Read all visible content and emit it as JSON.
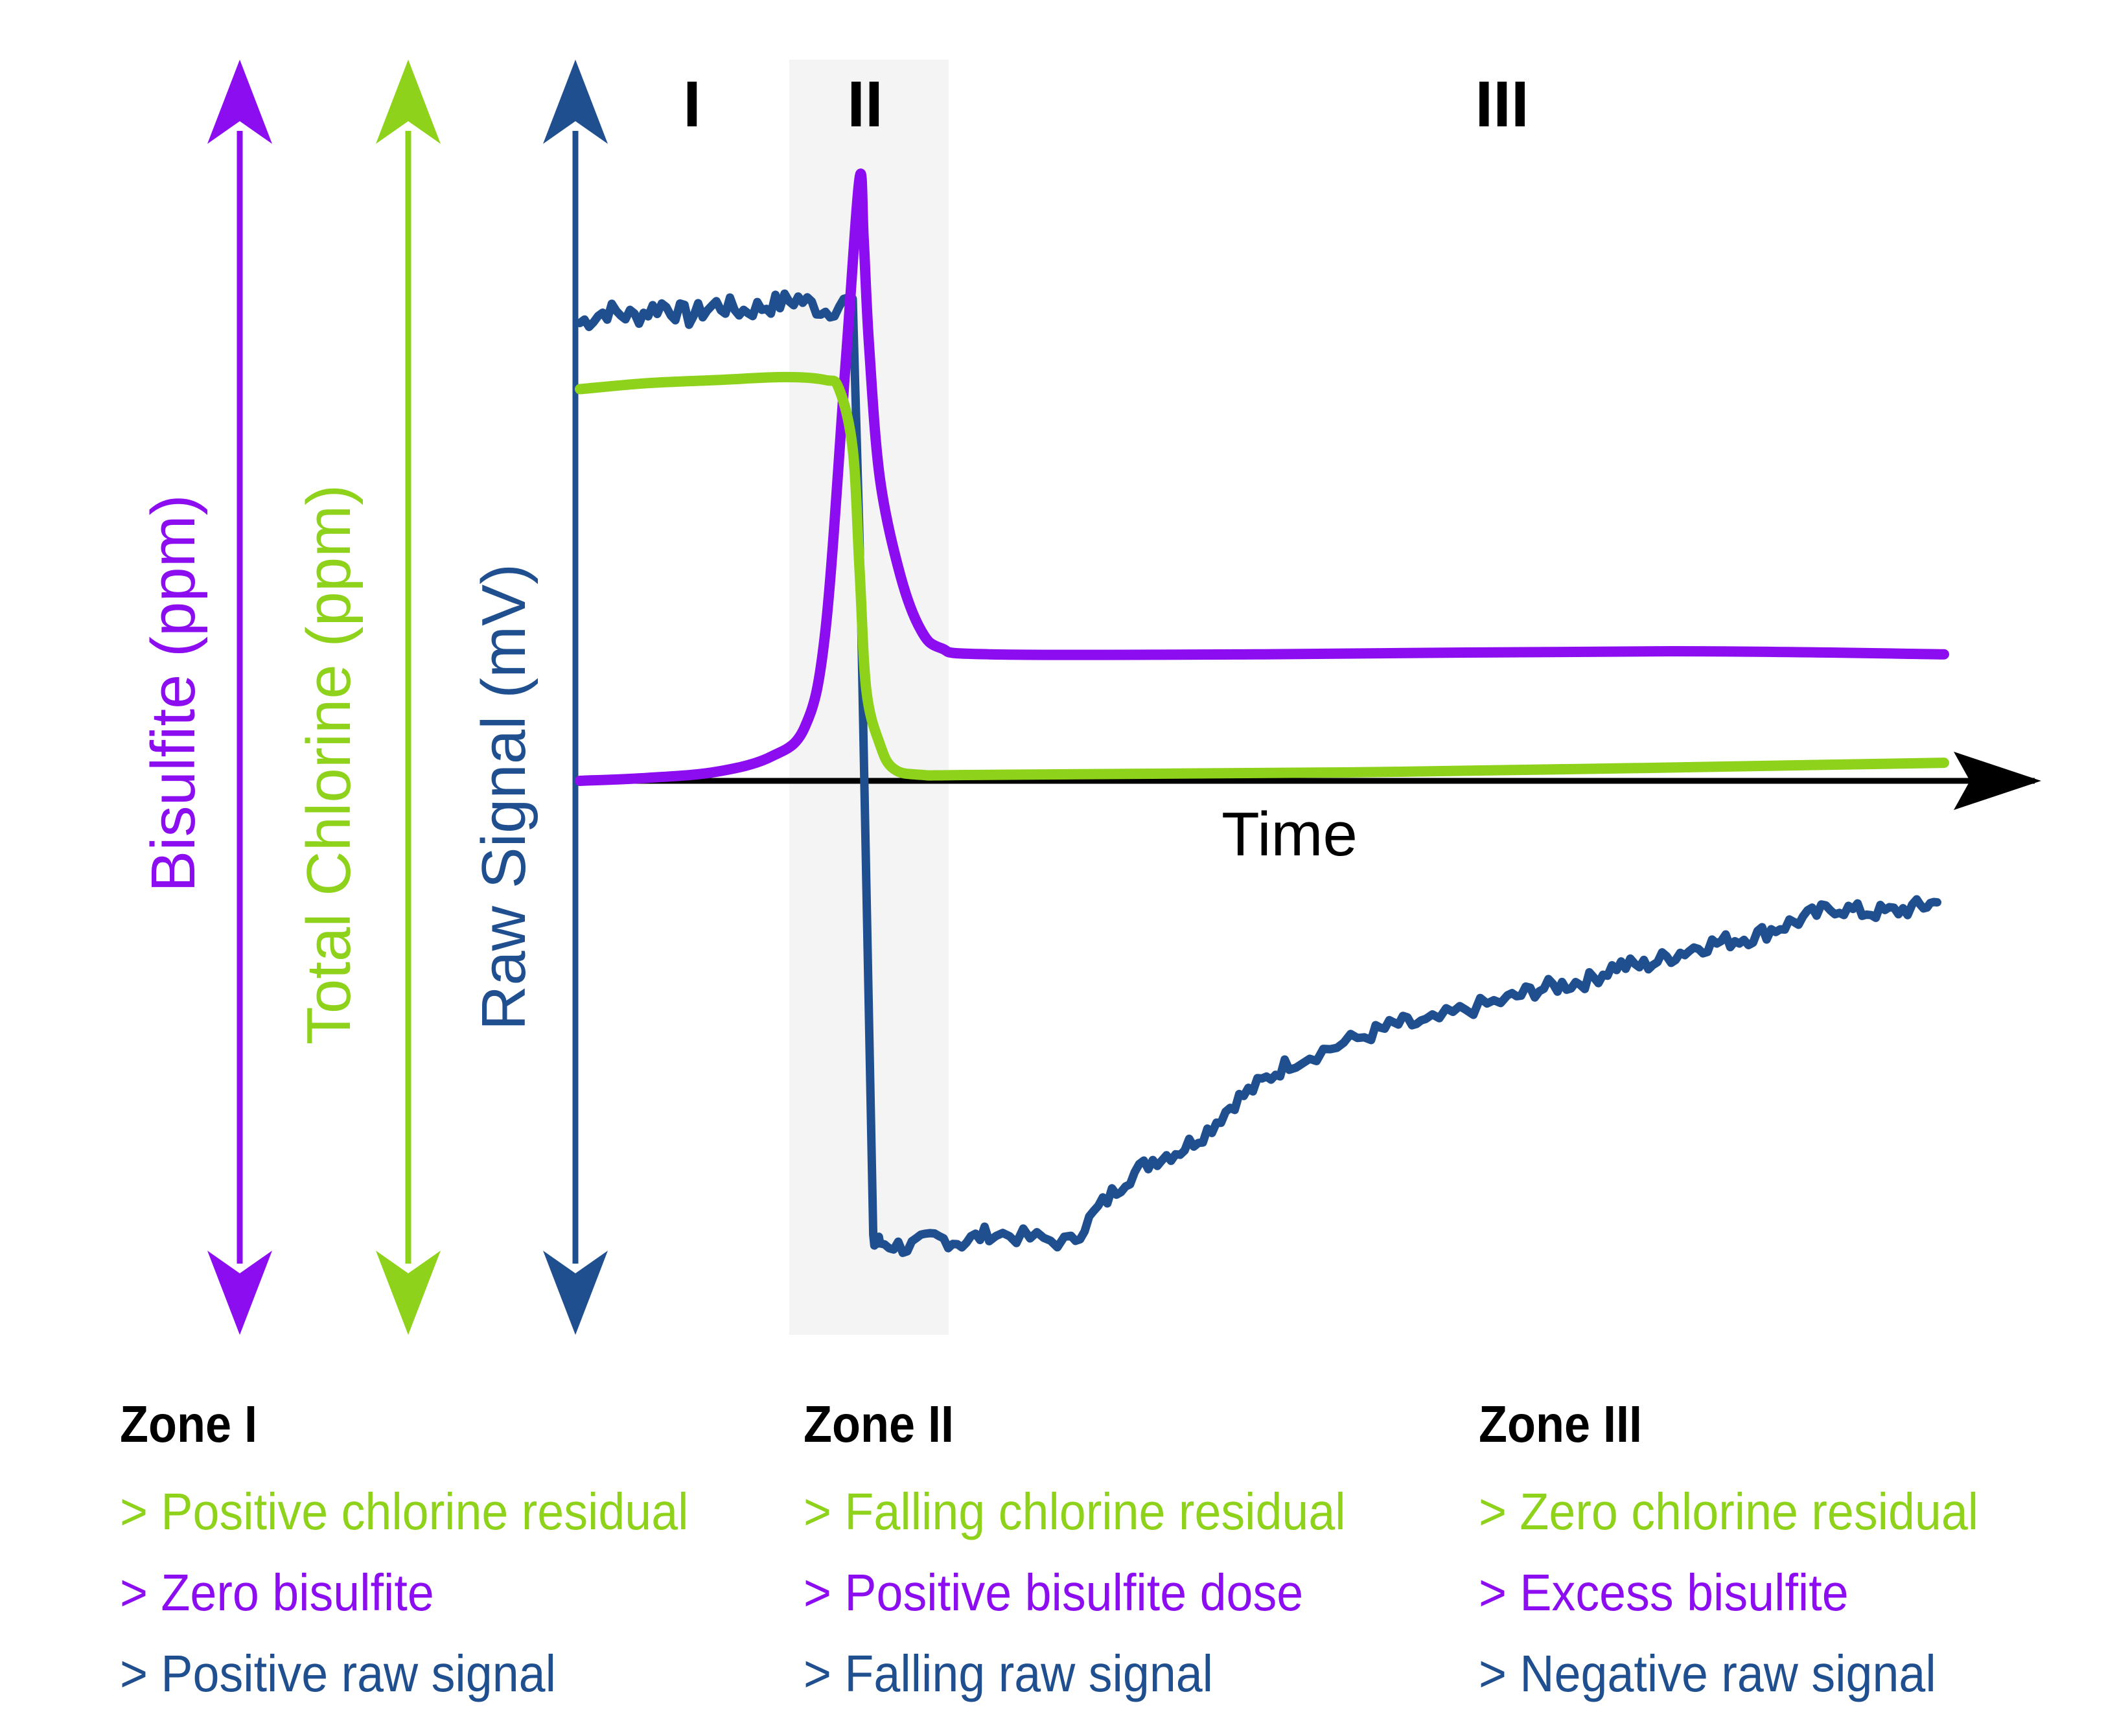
{
  "colors": {
    "bisulfite": "#8c0df0",
    "chlorine": "#8fd21b",
    "raw_signal": "#1f4f8f",
    "axis": "#000000",
    "zone_shade": "#f4f4f4"
  },
  "chart_data": {
    "type": "line",
    "title": "",
    "xlabel": "Time",
    "y_axes": [
      {
        "label": "Bisulfite (ppm)",
        "color": "#8c0df0"
      },
      {
        "label": "Total Chlorine (ppm)",
        "color": "#8fd21b"
      },
      {
        "label": "Raw Signal (mV)",
        "color": "#1f4f8f"
      }
    ],
    "zones": [
      {
        "label": "I",
        "start": 0,
        "end": 0.155
      },
      {
        "label": "II",
        "start": 0.155,
        "end": 0.27
      },
      {
        "label": "III",
        "start": 0.27,
        "end": 1.0
      }
    ],
    "xlim": [
      0,
      1
    ],
    "ylim": [
      -1,
      1
    ],
    "grid": false,
    "series": [
      {
        "name": "Bisulfite (ppm)",
        "color": "#8c0df0",
        "x": [
          0,
          0.05,
          0.1,
          0.14,
          0.165,
          0.18,
          0.195,
          0.205,
          0.208,
          0.212,
          0.22,
          0.235,
          0.25,
          0.265,
          0.3,
          0.5,
          0.8,
          1.0
        ],
        "y": [
          0.0,
          0.005,
          0.015,
          0.04,
          0.09,
          0.25,
          0.7,
          1.0,
          0.9,
          0.72,
          0.5,
          0.34,
          0.25,
          0.22,
          0.21,
          0.21,
          0.215,
          0.21
        ]
      },
      {
        "name": "Total Chlorine (ppm)",
        "color": "#8fd21b",
        "x": [
          0,
          0.05,
          0.1,
          0.15,
          0.18,
          0.19,
          0.2,
          0.205,
          0.21,
          0.22,
          0.23,
          0.25,
          0.3,
          0.6,
          1.0
        ],
        "y": [
          0.65,
          0.66,
          0.665,
          0.67,
          0.665,
          0.65,
          0.55,
          0.35,
          0.15,
          0.06,
          0.02,
          0.01,
          0.01,
          0.015,
          0.03
        ]
      },
      {
        "name": "Raw Signal (mV)",
        "color": "#1f4f8f",
        "x": [
          0,
          0.02,
          0.04,
          0.06,
          0.08,
          0.1,
          0.12,
          0.14,
          0.16,
          0.18,
          0.2,
          0.205,
          0.215,
          0.22,
          0.24,
          0.26,
          0.28,
          0.3,
          0.33,
          0.36,
          0.38,
          0.4,
          0.42,
          0.44,
          0.46,
          0.48,
          0.5,
          0.52,
          0.55,
          0.58,
          0.6,
          0.62,
          0.65,
          0.68,
          0.7,
          0.72,
          0.74,
          0.76,
          0.78,
          0.8,
          0.82,
          0.84,
          0.86,
          0.88,
          0.9,
          0.92,
          0.94,
          0.96,
          0.98,
          0.995
        ],
        "y": [
          0.76,
          0.78,
          0.77,
          0.79,
          0.77,
          0.79,
          0.78,
          0.79,
          0.8,
          0.78,
          0.8,
          0.4,
          -0.95,
          -0.95,
          -0.96,
          -0.94,
          -0.95,
          -0.93,
          -0.94,
          -0.95,
          -0.88,
          -0.82,
          -0.78,
          -0.76,
          -0.72,
          -0.66,
          -0.62,
          -0.58,
          -0.55,
          -0.52,
          -0.5,
          -0.5,
          -0.47,
          -0.45,
          -0.43,
          -0.42,
          -0.41,
          -0.38,
          -0.38,
          -0.36,
          -0.34,
          -0.33,
          -0.32,
          -0.3,
          -0.28,
          -0.26,
          -0.27,
          -0.27,
          -0.26,
          -0.25
        ]
      }
    ]
  },
  "zones_text": [
    {
      "title": "Zone I",
      "chlorine": "> Positive chlorine residual",
      "bisulfite": "> Zero bisulfite",
      "signal": "> Positive raw signal"
    },
    {
      "title": "Zone II",
      "chlorine": "> Falling chlorine residual",
      "bisulfite": "> Positive bisulfite dose",
      "signal": "> Falling raw signal"
    },
    {
      "title": "Zone III",
      "chlorine": "> Zero chlorine residual",
      "bisulfite": "> Excess bisulfite",
      "signal": "> Negative raw signal"
    }
  ]
}
